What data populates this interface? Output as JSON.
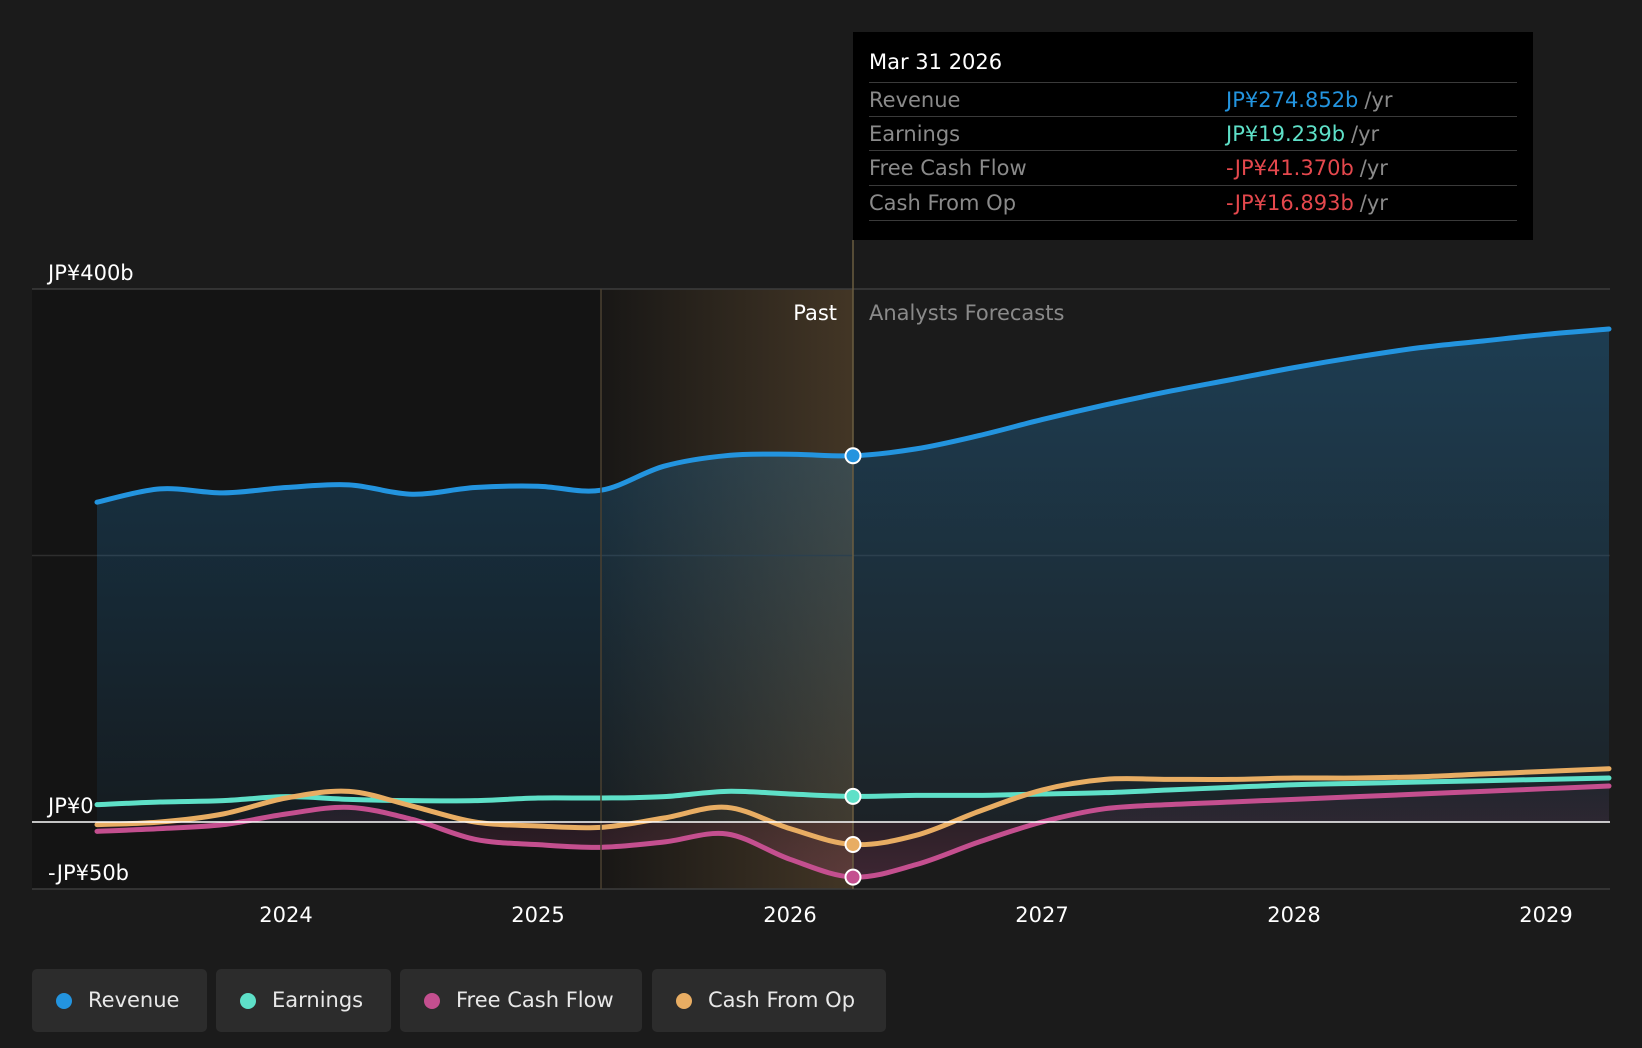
{
  "chart_data": {
    "type": "area",
    "y_axis": {
      "labels": [
        "JP¥400b",
        "JP¥0",
        "-JP¥50b"
      ],
      "ylim": [
        -50,
        400
      ],
      "unit": "JP¥ billions"
    },
    "x_axis": {
      "ticks": [
        "2024",
        "2025",
        "2026",
        "2027",
        "2028",
        "2029"
      ],
      "range": [
        2023.25,
        2029.25
      ]
    },
    "past_label": "Past",
    "forecast_label": "Analysts Forecasts",
    "divider_x": 2026.25,
    "highlight_start_x": 2025.25,
    "series": [
      {
        "name": "Revenue",
        "color": "#2394df",
        "points": [
          [
            2023.25,
            240
          ],
          [
            2023.5,
            250
          ],
          [
            2023.75,
            247
          ],
          [
            2024,
            251
          ],
          [
            2024.25,
            253
          ],
          [
            2024.5,
            246
          ],
          [
            2024.75,
            251
          ],
          [
            2025,
            252
          ],
          [
            2025.25,
            249
          ],
          [
            2025.5,
            267
          ],
          [
            2025.75,
            275
          ],
          [
            2026,
            276
          ],
          [
            2026.25,
            274.852
          ],
          [
            2026.5,
            280
          ],
          [
            2026.75,
            290
          ],
          [
            2027,
            302
          ],
          [
            2027.25,
            313
          ],
          [
            2027.5,
            323
          ],
          [
            2027.75,
            332
          ],
          [
            2028,
            341
          ],
          [
            2028.25,
            349
          ],
          [
            2028.5,
            356
          ],
          [
            2028.75,
            361
          ],
          [
            2029,
            366
          ],
          [
            2029.25,
            370
          ]
        ]
      },
      {
        "name": "Earnings",
        "color": "#5ee0c8",
        "points": [
          [
            2023.25,
            13
          ],
          [
            2023.5,
            15
          ],
          [
            2023.75,
            16
          ],
          [
            2024,
            19
          ],
          [
            2024.25,
            17
          ],
          [
            2024.5,
            16
          ],
          [
            2024.75,
            16
          ],
          [
            2025,
            18
          ],
          [
            2025.25,
            18
          ],
          [
            2025.5,
            19
          ],
          [
            2025.75,
            23
          ],
          [
            2026,
            21
          ],
          [
            2026.25,
            19.239
          ],
          [
            2026.5,
            20
          ],
          [
            2026.75,
            20
          ],
          [
            2027,
            21
          ],
          [
            2027.25,
            22
          ],
          [
            2027.5,
            24
          ],
          [
            2027.75,
            26
          ],
          [
            2028,
            28
          ],
          [
            2028.25,
            29
          ],
          [
            2028.5,
            30
          ],
          [
            2028.75,
            31
          ],
          [
            2029,
            32
          ],
          [
            2029.25,
            33
          ]
        ]
      },
      {
        "name": "Free Cash Flow",
        "color": "#c44f8f",
        "points": [
          [
            2023.25,
            -7
          ],
          [
            2023.5,
            -5
          ],
          [
            2023.75,
            -2
          ],
          [
            2024,
            6
          ],
          [
            2024.25,
            11
          ],
          [
            2024.5,
            2
          ],
          [
            2024.75,
            -13
          ],
          [
            2025,
            -17
          ],
          [
            2025.25,
            -19
          ],
          [
            2025.5,
            -15
          ],
          [
            2025.75,
            -9
          ],
          [
            2026,
            -28
          ],
          [
            2026.25,
            -41.37
          ],
          [
            2026.5,
            -32
          ],
          [
            2026.75,
            -15
          ],
          [
            2027,
            0
          ],
          [
            2027.25,
            10
          ],
          [
            2027.5,
            13
          ],
          [
            2027.75,
            15
          ],
          [
            2028,
            17
          ],
          [
            2028.25,
            19
          ],
          [
            2028.5,
            21
          ],
          [
            2028.75,
            23
          ],
          [
            2029,
            25
          ],
          [
            2029.25,
            27
          ]
        ]
      },
      {
        "name": "Cash From Op",
        "color": "#e8ad63",
        "points": [
          [
            2023.25,
            -2
          ],
          [
            2023.5,
            0
          ],
          [
            2023.75,
            6
          ],
          [
            2024,
            18
          ],
          [
            2024.25,
            23
          ],
          [
            2024.5,
            12
          ],
          [
            2024.75,
            0
          ],
          [
            2025,
            -3
          ],
          [
            2025.25,
            -4
          ],
          [
            2025.5,
            3
          ],
          [
            2025.75,
            11
          ],
          [
            2026,
            -5
          ],
          [
            2026.25,
            -16.893
          ],
          [
            2026.5,
            -10
          ],
          [
            2026.75,
            8
          ],
          [
            2027,
            24
          ],
          [
            2027.25,
            32
          ],
          [
            2027.5,
            32
          ],
          [
            2027.75,
            32
          ],
          [
            2028,
            33
          ],
          [
            2028.25,
            33
          ],
          [
            2028.5,
            34
          ],
          [
            2028.75,
            36
          ],
          [
            2029,
            38
          ],
          [
            2029.25,
            40
          ]
        ]
      }
    ]
  },
  "tooltip": {
    "date": "Mar 31 2026",
    "unit": "/yr",
    "rows": [
      {
        "label": "Revenue",
        "value": "JP¥274.852b",
        "color": "#2394df"
      },
      {
        "label": "Earnings",
        "value": "JP¥19.239b",
        "color": "#5ee0c8"
      },
      {
        "label": "Free Cash Flow",
        "value": "-JP¥41.370b",
        "color": "#e5484d"
      },
      {
        "label": "Cash From Op",
        "value": "-JP¥16.893b",
        "color": "#e5484d"
      }
    ]
  },
  "legend": [
    {
      "label": "Revenue",
      "color": "#2394df"
    },
    {
      "label": "Earnings",
      "color": "#5ee0c8"
    },
    {
      "label": "Free Cash Flow",
      "color": "#c44f8f"
    },
    {
      "label": "Cash From Op",
      "color": "#e8ad63"
    }
  ]
}
